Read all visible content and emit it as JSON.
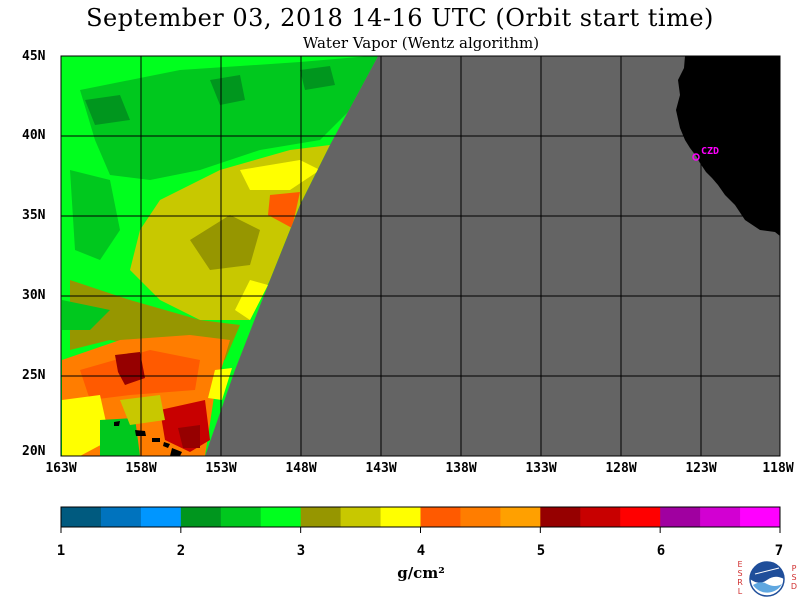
{
  "title": "September 03, 2018  14-16 UTC  (Orbit start time)",
  "subtitle": "Water Vapor (Wentz algorithm)",
  "map": {
    "latitude_labels": [
      "45N",
      "40N",
      "35N",
      "30N",
      "25N",
      "20N"
    ],
    "longitude_labels": [
      "163W",
      "158W",
      "153W",
      "148W",
      "143W",
      "138W",
      "133W",
      "128W",
      "123W",
      "118W"
    ],
    "station_label": "CZD",
    "colors": {
      "no_data": "#646464",
      "land": "#000000",
      "grid": "#000000",
      "station": "#ff00ff"
    }
  },
  "colorbar": {
    "ticks": [
      "1",
      "2",
      "3",
      "4",
      "5",
      "6",
      "7"
    ],
    "units": "g/cm²",
    "colors": [
      "#005a7f",
      "#0073be",
      "#0096ff",
      "#00961e",
      "#00c81e",
      "#00ff1e",
      "#969600",
      "#c8c800",
      "#ffff00",
      "#ff5a00",
      "#ff7d00",
      "#ffa000",
      "#960000",
      "#c80000",
      "#ff0000",
      "#a000a0",
      "#d200d2",
      "#ff00ff"
    ]
  },
  "logo": {
    "left_letters": [
      "E",
      "S",
      "R",
      "L"
    ],
    "right_letters": [
      "P",
      "S",
      "D"
    ],
    "center_text": "NOAA"
  }
}
